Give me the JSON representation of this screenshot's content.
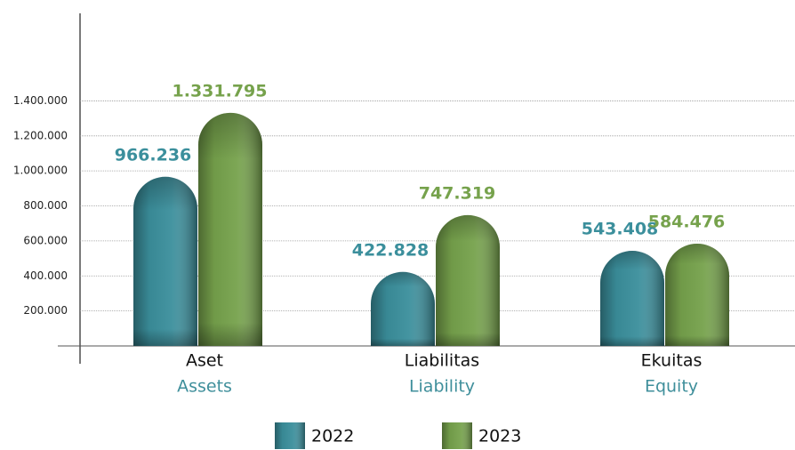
{
  "chart_data": {
    "type": "bar",
    "categories": [
      "Aset",
      "Liabilitas",
      "Ekuitas"
    ],
    "category_subtitles": [
      "Assets",
      "Liability",
      "Equity"
    ],
    "series": [
      {
        "name": "2022",
        "color": "#3b8f9c",
        "values": [
          966236,
          422828,
          543408
        ],
        "value_labels": [
          "966.236",
          "422.828",
          "543.408"
        ]
      },
      {
        "name": "2023",
        "color": "#76a24c",
        "values": [
          1331795,
          747319,
          584476
        ],
        "value_labels": [
          "1.331.795",
          "747.319",
          "584.476"
        ]
      }
    ],
    "ylim": [
      0,
      1900000
    ],
    "yticks": [
      {
        "value": 200000,
        "label": "200.000"
      },
      {
        "value": 400000,
        "label": "400.000"
      },
      {
        "value": 600000,
        "label": "600.000"
      },
      {
        "value": 800000,
        "label": "800.000"
      },
      {
        "value": 1000000,
        "label": "1.000.000"
      },
      {
        "value": 1200000,
        "label": "1.200.000"
      },
      {
        "value": 1400000,
        "label": "1.400.000"
      }
    ],
    "grid": true,
    "legend": "bottom"
  }
}
